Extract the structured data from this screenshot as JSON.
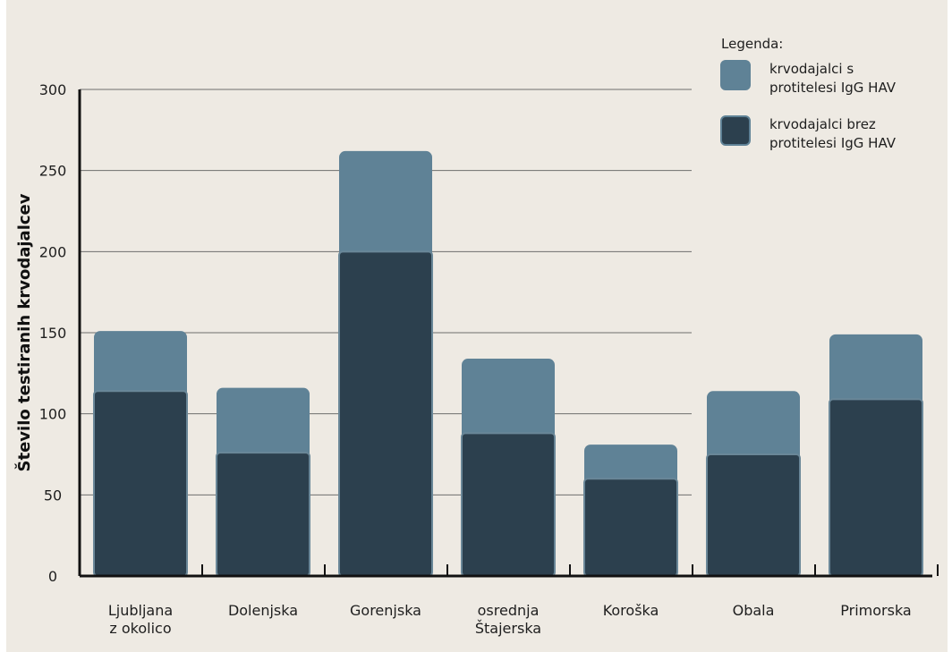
{
  "chart_data": {
    "type": "bar",
    "stacked": true,
    "categories": [
      [
        "Ljubljana",
        "z okolico"
      ],
      [
        "Dolenjska"
      ],
      [
        "Gorenjska"
      ],
      [
        "osrednja",
        "Štajerska"
      ],
      [
        "Koroška"
      ],
      [
        "Obala"
      ],
      [
        "Primorska"
      ]
    ],
    "series": [
      {
        "name": "krvodajalci brez protitelesi IgG HAV",
        "legend_lines": [
          "krvodajalci brez",
          "protitelesi IgG HAV"
        ],
        "color": "#2c404e",
        "values": [
          114,
          76,
          200,
          88,
          60,
          75,
          109
        ]
      },
      {
        "name": "krvodajalci s protitelesi IgG HAV",
        "legend_lines": [
          "krvodajalci s",
          "protitelesi IgG HAV"
        ],
        "color": "#5f8296",
        "values": [
          37,
          40,
          62,
          46,
          21,
          39,
          40
        ]
      }
    ],
    "legend_title": "Legenda:",
    "legend_order": [
      1,
      0
    ],
    "ylabel": "Število testiranih krvodajalcev",
    "yticks": [
      0,
      50,
      100,
      150,
      200,
      250,
      300
    ],
    "ylim": [
      0,
      300
    ],
    "grid": true,
    "legend_position": "top-right"
  }
}
